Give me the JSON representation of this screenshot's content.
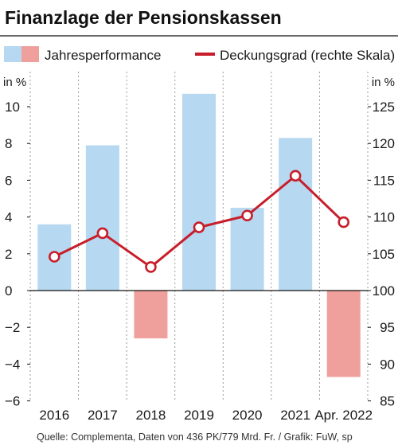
{
  "chart_data": {
    "type": "bar",
    "title": "Finanzlage der Pensionskassen",
    "categories": [
      "2016",
      "2017",
      "2018",
      "2019",
      "2020",
      "2021",
      "Apr. 2022"
    ],
    "series": [
      {
        "name": "Jahresperformance",
        "kind": "bar",
        "axis": "left",
        "values": [
          3.6,
          7.9,
          -2.6,
          10.7,
          4.5,
          8.3,
          -4.7
        ],
        "color_positive": "#b6d8f0",
        "color_negative": "#f0a09c"
      },
      {
        "name": "Deckungsgrad (rechte Skala)",
        "kind": "line",
        "axis": "right",
        "values": [
          104.6,
          107.8,
          103.2,
          108.6,
          110.2,
          115.6,
          109.3
        ],
        "color": "#c81e2b"
      }
    ],
    "y_left": {
      "unit": "in %",
      "range": [
        -6,
        11
      ],
      "ticks": [
        10,
        8,
        6,
        4,
        2,
        0,
        -2,
        -4,
        -6
      ]
    },
    "y_right": {
      "unit": "in %",
      "range": [
        85,
        127.5
      ],
      "ticks": [
        125,
        120,
        115,
        110,
        105,
        100,
        95,
        90,
        85
      ]
    },
    "grid": "vertical dashed",
    "legend_placement": "top"
  },
  "source": "Quelle: Complementa, Daten von 436 PK/779 Mrd. Fr. / Grafik: FuW, sp"
}
